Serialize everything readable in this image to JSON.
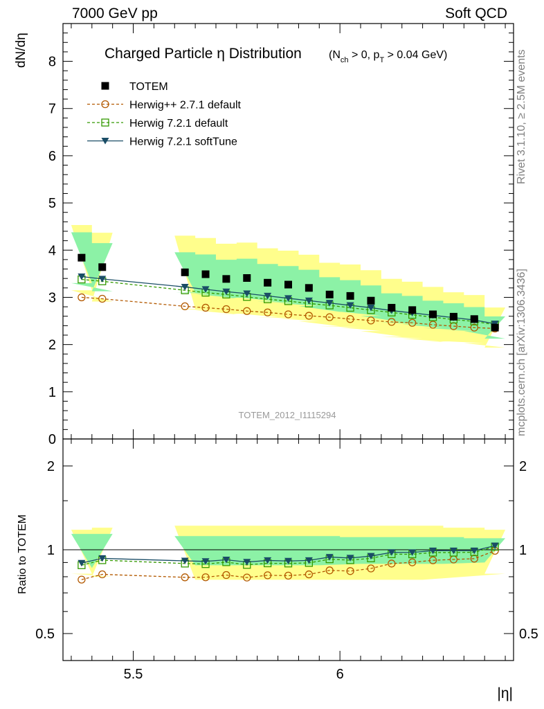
{
  "header": {
    "left": "7000 GeV pp",
    "right": "Soft QCD"
  },
  "side_labels": {
    "rivet": "Rivet 3.1.10, ≥ 2.5M events",
    "mcplots": "mcplots.cern.ch [arXiv:1306.3436]"
  },
  "chart_data": {
    "type": "scatter",
    "title": "Charged Particle η Distribution",
    "title_cut_html": "(N<tspan baseline-shift=\"sub\" font-size=\"11\">ch</tspan> &gt; 0, p<tspan baseline-shift=\"sub\" font-size=\"11\">T</tspan> &gt; 0.04 GeV)",
    "xlabel": "|η|",
    "ylabel": "dN/dη",
    "ratio_ylabel": "Ratio to TOTEM",
    "watermark": "TOTEM_2012_I1115294",
    "xlim": [
      5.33,
      6.42
    ],
    "ylim": [
      0,
      8.8
    ],
    "ratio_ylim": [
      0.4,
      2.5
    ],
    "ratio_log": true,
    "x_ticks": [
      5.5,
      6
    ],
    "x_tick_labels": [
      "5.5",
      "6"
    ],
    "y_ticks": [
      0,
      1,
      2,
      3,
      4,
      5,
      6,
      7,
      8
    ],
    "y_tick_labels": [
      "0",
      "1",
      "2",
      "3",
      "4",
      "5",
      "6",
      "7",
      "8"
    ],
    "ratio_ticks": [
      0.5,
      1,
      2
    ],
    "ratio_tick_labels": [
      "0.5",
      "1",
      "2"
    ],
    "legend_position": "top-left",
    "x": [
      5.375,
      5.425,
      5.625,
      5.675,
      5.725,
      5.775,
      5.825,
      5.875,
      5.925,
      5.975,
      6.025,
      6.075,
      6.125,
      6.175,
      6.225,
      6.275,
      6.325,
      6.375
    ],
    "data_series": {
      "name": "TOTEM",
      "color": "#000000",
      "values": [
        3.84,
        3.64,
        3.53,
        3.49,
        3.39,
        3.41,
        3.31,
        3.27,
        3.2,
        3.06,
        3.03,
        2.93,
        2.78,
        2.73,
        2.64,
        2.59,
        2.54,
        2.36
      ],
      "band_inner_frac": [
        0.14,
        0.14,
        0.12,
        0.12,
        0.12,
        0.12,
        0.12,
        0.12,
        0.12,
        0.12,
        0.11,
        0.11,
        0.11,
        0.11,
        0.11,
        0.11,
        0.1,
        0.1
      ],
      "band_outer_frac": [
        0.18,
        0.2,
        0.22,
        0.22,
        0.22,
        0.22,
        0.22,
        0.22,
        0.22,
        0.22,
        0.22,
        0.22,
        0.22,
        0.22,
        0.22,
        0.2,
        0.2,
        0.18
      ]
    },
    "series": [
      {
        "name": "Herwig++ 2.7.1 default",
        "color": "#b35900",
        "marker": "circle",
        "dashed": true,
        "values": [
          3.0,
          2.97,
          2.81,
          2.78,
          2.75,
          2.71,
          2.68,
          2.64,
          2.61,
          2.58,
          2.54,
          2.51,
          2.48,
          2.46,
          2.42,
          2.39,
          2.36,
          2.34
        ]
      },
      {
        "name": "Herwig 7.2.1 default",
        "color": "#339900",
        "marker": "square",
        "dashed": true,
        "values": [
          3.38,
          3.34,
          3.15,
          3.1,
          3.06,
          3.01,
          2.96,
          2.92,
          2.87,
          2.83,
          2.78,
          2.73,
          2.68,
          2.63,
          2.58,
          2.53,
          2.49,
          2.42
        ]
      },
      {
        "name": "Herwig 7.2.1 softTune",
        "color": "#1a4d66",
        "marker": "triangle-down",
        "dashed": false,
        "values": [
          3.44,
          3.39,
          3.22,
          3.17,
          3.12,
          3.08,
          3.03,
          2.98,
          2.93,
          2.88,
          2.83,
          2.78,
          2.72,
          2.67,
          2.62,
          2.57,
          2.52,
          2.44
        ]
      }
    ],
    "colors": {
      "band_inner": "#8cf2a6",
      "band_outer": "#fffe8c",
      "watermark": "#999999"
    }
  }
}
